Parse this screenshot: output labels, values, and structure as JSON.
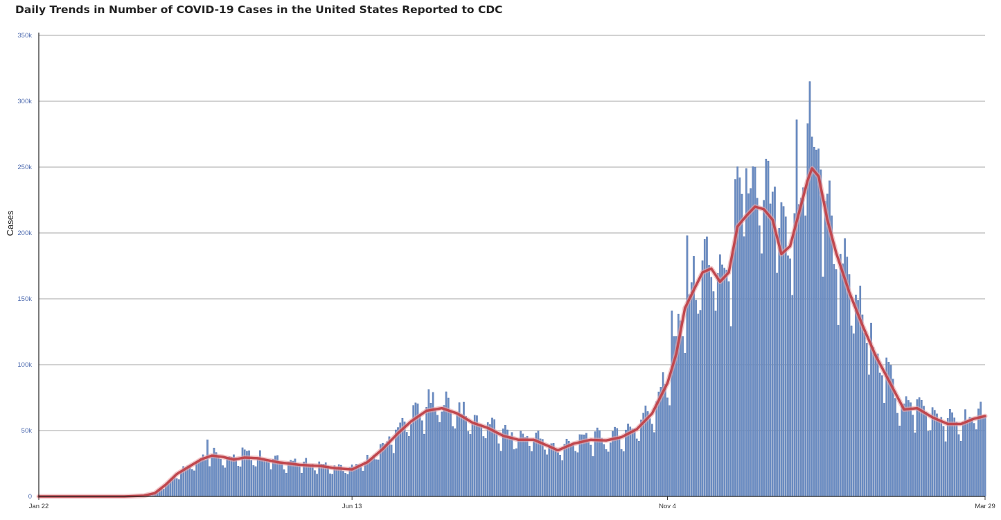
{
  "title": "Daily Trends in Number of COVID-19 Cases in the United States Reported to CDC",
  "chart_data": {
    "type": "bar",
    "title": "Daily Trends in Number of COVID-19 Cases in the United States Reported to CDC",
    "ylabel": "Cases",
    "xlabel": "",
    "x_start": "2020-01-22",
    "x_end": "2021-03-29",
    "ylim": [
      0,
      350000
    ],
    "y_ticks": [
      "0",
      "50k",
      "100k",
      "150k",
      "200k",
      "250k",
      "300k",
      "350k"
    ],
    "x_ticks": [
      {
        "label": "Jan 22",
        "date": "2020-01-22"
      },
      {
        "label": "Jun 13",
        "date": "2020-06-13"
      },
      {
        "label": "Nov 4",
        "date": "2020-11-04"
      },
      {
        "label": "Mar 29",
        "date": "2021-03-29"
      }
    ],
    "grid": true,
    "colors": {
      "bars": "#6a8cc2",
      "bar_edge": "#4a6aa3",
      "average_line": "#c0474e",
      "grid": "#a6a6a6"
    },
    "series": [
      {
        "name": "",
        "type": "bar",
        "points": [
          [
            "2020-01-22",
            0
          ],
          [
            "2020-03-01",
            0
          ],
          [
            "2020-03-10",
            500
          ],
          [
            "2020-03-15",
            2500
          ],
          [
            "2020-03-20",
            9000
          ],
          [
            "2020-03-25",
            17000
          ],
          [
            "2020-03-31",
            23000
          ],
          [
            "2020-04-05",
            28000
          ],
          [
            "2020-04-10",
            32000
          ],
          [
            "2020-04-15",
            29000
          ],
          [
            "2020-04-20",
            27000
          ],
          [
            "2020-04-25",
            30000
          ],
          [
            "2020-05-01",
            29000
          ],
          [
            "2020-05-10",
            26000
          ],
          [
            "2020-05-20",
            24000
          ],
          [
            "2020-05-30",
            23000
          ],
          [
            "2020-06-05",
            21000
          ],
          [
            "2020-06-13",
            20000
          ],
          [
            "2020-06-20",
            26000
          ],
          [
            "2020-06-27",
            36000
          ],
          [
            "2020-07-04",
            50000
          ],
          [
            "2020-07-10",
            58000
          ],
          [
            "2020-07-17",
            66000
          ],
          [
            "2020-07-24",
            68000
          ],
          [
            "2020-07-31",
            64000
          ],
          [
            "2020-08-07",
            56000
          ],
          [
            "2020-08-14",
            52000
          ],
          [
            "2020-08-21",
            46000
          ],
          [
            "2020-08-28",
            43000
          ],
          [
            "2020-09-04",
            44000
          ],
          [
            "2020-09-11",
            38000
          ],
          [
            "2020-09-15",
            34000
          ],
          [
            "2020-09-22",
            40000
          ],
          [
            "2020-09-30",
            43000
          ],
          [
            "2020-10-07",
            42000
          ],
          [
            "2020-10-14",
            45000
          ],
          [
            "2020-10-21",
            52000
          ],
          [
            "2020-10-28",
            64000
          ],
          [
            "2020-11-04",
            88000
          ],
          [
            "2020-11-08",
            110000
          ],
          [
            "2020-11-12",
            145000
          ],
          [
            "2020-11-17",
            160000
          ],
          [
            "2020-11-20",
            172000
          ],
          [
            "2020-11-24",
            172000
          ],
          [
            "2020-11-28",
            160000
          ],
          [
            "2020-12-02",
            170000
          ],
          [
            "2020-12-06",
            210000
          ],
          [
            "2020-12-10",
            213000
          ],
          [
            "2020-12-14",
            220000
          ],
          [
            "2020-12-18",
            219000
          ],
          [
            "2020-12-22",
            212000
          ],
          [
            "2020-12-26",
            185000
          ],
          [
            "2020-12-30",
            192000
          ],
          [
            "2021-01-03",
            215000
          ],
          [
            "2021-01-07",
            240000
          ],
          [
            "2021-01-09",
            250000
          ],
          [
            "2021-01-12",
            245000
          ],
          [
            "2021-01-16",
            210000
          ],
          [
            "2021-01-20",
            185000
          ],
          [
            "2021-01-26",
            155000
          ],
          [
            "2021-02-01",
            130000
          ],
          [
            "2021-02-07",
            108000
          ],
          [
            "2021-02-14",
            85000
          ],
          [
            "2021-02-20",
            67000
          ],
          [
            "2021-02-26",
            67000
          ],
          [
            "2021-03-05",
            60000
          ],
          [
            "2021-03-12",
            55000
          ],
          [
            "2021-03-18",
            55000
          ],
          [
            "2021-03-24",
            59000
          ],
          [
            "2021-03-29",
            61000
          ]
        ],
        "highlights": [
          [
            "2020-04-08",
            43000
          ],
          [
            "2020-04-24",
            37000
          ],
          [
            "2020-11-06",
            141000
          ],
          [
            "2020-11-13",
            198000
          ],
          [
            "2020-12-10",
            249000
          ],
          [
            "2020-12-14",
            250000
          ],
          [
            "2020-12-23",
            235000
          ],
          [
            "2021-01-02",
            286000
          ],
          [
            "2021-01-08",
            315000
          ],
          [
            "2021-01-07",
            283000
          ],
          [
            "2021-01-13",
            248000
          ]
        ]
      },
      {
        "name": "",
        "type": "line",
        "points": [
          [
            "2020-01-22",
            0
          ],
          [
            "2020-03-01",
            0
          ],
          [
            "2020-03-10",
            600
          ],
          [
            "2020-03-15",
            2500
          ],
          [
            "2020-03-20",
            9000
          ],
          [
            "2020-03-25",
            17000
          ],
          [
            "2020-03-31",
            23000
          ],
          [
            "2020-04-05",
            28000
          ],
          [
            "2020-04-10",
            31000
          ],
          [
            "2020-04-15",
            30000
          ],
          [
            "2020-04-20",
            28000
          ],
          [
            "2020-04-25",
            29500
          ],
          [
            "2020-05-01",
            29000
          ],
          [
            "2020-05-10",
            26000
          ],
          [
            "2020-05-20",
            24000
          ],
          [
            "2020-05-30",
            23000
          ],
          [
            "2020-06-05",
            21500
          ],
          [
            "2020-06-13",
            20500
          ],
          [
            "2020-06-20",
            26000
          ],
          [
            "2020-06-27",
            36000
          ],
          [
            "2020-07-04",
            48000
          ],
          [
            "2020-07-10",
            57000
          ],
          [
            "2020-07-17",
            65000
          ],
          [
            "2020-07-24",
            67000
          ],
          [
            "2020-07-31",
            63000
          ],
          [
            "2020-08-07",
            56000
          ],
          [
            "2020-08-14",
            52000
          ],
          [
            "2020-08-21",
            46000
          ],
          [
            "2020-08-28",
            43000
          ],
          [
            "2020-09-04",
            43000
          ],
          [
            "2020-09-11",
            38000
          ],
          [
            "2020-09-15",
            35000
          ],
          [
            "2020-09-22",
            40000
          ],
          [
            "2020-09-30",
            43000
          ],
          [
            "2020-10-07",
            42500
          ],
          [
            "2020-10-14",
            45000
          ],
          [
            "2020-10-21",
            51000
          ],
          [
            "2020-10-28",
            63000
          ],
          [
            "2020-11-04",
            86000
          ],
          [
            "2020-11-08",
            108000
          ],
          [
            "2020-11-12",
            143000
          ],
          [
            "2020-11-17",
            160000
          ],
          [
            "2020-11-20",
            170000
          ],
          [
            "2020-11-24",
            173000
          ],
          [
            "2020-11-28",
            163000
          ],
          [
            "2020-12-02",
            170000
          ],
          [
            "2020-12-06",
            205000
          ],
          [
            "2020-12-10",
            213000
          ],
          [
            "2020-12-14",
            220000
          ],
          [
            "2020-12-18",
            218000
          ],
          [
            "2020-12-22",
            210000
          ],
          [
            "2020-12-26",
            184000
          ],
          [
            "2020-12-30",
            190000
          ],
          [
            "2021-01-03",
            215000
          ],
          [
            "2021-01-07",
            240000
          ],
          [
            "2021-01-09",
            249000
          ],
          [
            "2021-01-12",
            243000
          ],
          [
            "2021-01-16",
            210000
          ],
          [
            "2021-01-20",
            185000
          ],
          [
            "2021-01-26",
            155000
          ],
          [
            "2021-02-01",
            130000
          ],
          [
            "2021-02-07",
            107000
          ],
          [
            "2021-02-14",
            85000
          ],
          [
            "2021-02-20",
            66000
          ],
          [
            "2021-02-26",
            67000
          ],
          [
            "2021-03-05",
            60000
          ],
          [
            "2021-03-12",
            55000
          ],
          [
            "2021-03-18",
            55000
          ],
          [
            "2021-03-24",
            59000
          ],
          [
            "2021-03-29",
            61000
          ]
        ]
      }
    ]
  }
}
